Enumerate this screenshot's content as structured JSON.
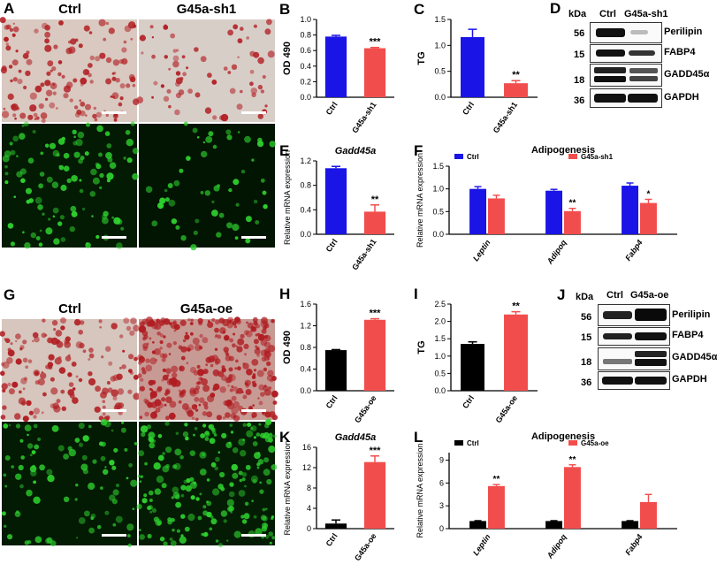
{
  "panels": {
    "A": {
      "label": "A",
      "titles": [
        "Ctrl",
        "G45a-sh1"
      ]
    },
    "G": {
      "label": "G",
      "titles": [
        "Ctrl",
        "G45a-oe"
      ]
    },
    "D": {
      "label": "D",
      "kda": "kDa",
      "lanes": [
        "Ctrl",
        "G45a-sh1"
      ],
      "markers": [
        "56",
        "15",
        "18",
        "36"
      ],
      "proteins": [
        "Perilipin",
        "FABP4",
        "GADD45α",
        "GAPDH"
      ]
    },
    "J": {
      "label": "J",
      "kda": "kDa",
      "lanes": [
        "Ctrl",
        "G45a-oe"
      ],
      "markers": [
        "56",
        "15",
        "18",
        "36"
      ],
      "proteins": [
        "Perilipin",
        "FABP4",
        "GADD45α",
        "GAPDH"
      ]
    }
  },
  "colors": {
    "ctrl_blue": "#1a14e6",
    "ctrl_black": "#000000",
    "treat_red": "#f24d4d",
    "oil_red": "#b22025",
    "gfp": "#2ed12e"
  },
  "chart_data": [
    {
      "id": "B",
      "label": "B",
      "type": "bar",
      "categories": [
        "Ctrl",
        "G45a-sh1"
      ],
      "values": [
        0.78,
        0.63
      ],
      "errors": [
        0.015,
        0.01
      ],
      "colors": [
        "#1a14e6",
        "#f24d4d"
      ],
      "ylabel": "OD 490",
      "ylim": [
        0,
        1.0
      ],
      "yticks": [
        "0.0",
        "0.2",
        "0.4",
        "0.6",
        "0.8",
        "1.0"
      ],
      "sig": [
        "",
        "***"
      ]
    },
    {
      "id": "C",
      "label": "C",
      "type": "bar",
      "categories": [
        "Ctrl",
        "G45a-sh1"
      ],
      "values": [
        1.16,
        0.27
      ],
      "errors": [
        0.15,
        0.05
      ],
      "colors": [
        "#1a14e6",
        "#f24d4d"
      ],
      "ylabel": "TG",
      "ylim": [
        0,
        1.5
      ],
      "yticks": [
        "0.0",
        "0.5",
        "1.0",
        "1.5"
      ],
      "sig": [
        "",
        "**"
      ]
    },
    {
      "id": "E",
      "label": "E",
      "type": "bar",
      "title": "Gadd45a",
      "categories": [
        "Ctrl",
        "G45a-sh1"
      ],
      "values": [
        1.08,
        0.37
      ],
      "errors": [
        0.03,
        0.11
      ],
      "colors": [
        "#1a14e6",
        "#f24d4d"
      ],
      "ylabel": "Relative mRNA expression",
      "ylim": [
        0,
        1.2
      ],
      "yticks": [
        "0.0",
        "0.4",
        "0.8",
        "1.2"
      ],
      "sig": [
        "",
        "**"
      ]
    },
    {
      "id": "F",
      "label": "F",
      "type": "bar",
      "title": "Adipogenesis",
      "categories": [
        "Leptin",
        "Adipoq",
        "Fabp4"
      ],
      "series": [
        {
          "name": "Ctrl",
          "values": [
            1.0,
            0.96,
            1.07
          ],
          "errors": [
            0.05,
            0.03,
            0.06
          ],
          "color": "#1a14e6"
        },
        {
          "name": "G45a-sh1",
          "values": [
            0.79,
            0.51,
            0.69
          ],
          "errors": [
            0.07,
            0.06,
            0.08
          ],
          "color": "#f24d4d"
        }
      ],
      "sig": [
        [
          "",
          ""
        ],
        [
          "",
          "**"
        ],
        [
          "",
          "*"
        ]
      ],
      "ylabel": "Relative mRNA expression",
      "ylim": [
        0,
        1.5
      ],
      "yticks": [
        "0.0",
        "0.5",
        "1.0",
        "1.5"
      ],
      "legend": "top"
    },
    {
      "id": "H",
      "label": "H",
      "type": "bar",
      "categories": [
        "Ctrl",
        "G45a-oe"
      ],
      "values": [
        0.75,
        1.31
      ],
      "errors": [
        0.01,
        0.02
      ],
      "colors": [
        "#000000",
        "#f24d4d"
      ],
      "ylabel": "OD 490",
      "ylim": [
        0,
        1.6
      ],
      "yticks": [
        "0.0",
        "0.4",
        "0.8",
        "1.2",
        "1.6"
      ],
      "sig": [
        "",
        "***"
      ]
    },
    {
      "id": "I",
      "label": "I",
      "type": "bar",
      "categories": [
        "Ctrl",
        "G45a-oe"
      ],
      "values": [
        1.35,
        2.2
      ],
      "errors": [
        0.06,
        0.08
      ],
      "colors": [
        "#000000",
        "#f24d4d"
      ],
      "ylabel": "TG",
      "ylim": [
        0,
        2.5
      ],
      "yticks": [
        "0.0",
        "0.5",
        "1.0",
        "1.5",
        "2.0",
        "2.5"
      ],
      "sig": [
        "",
        "**"
      ]
    },
    {
      "id": "K",
      "label": "K",
      "type": "bar",
      "title": "Gadd45a",
      "categories": [
        "Ctrl",
        "G45a-oe"
      ],
      "values": [
        1.0,
        13.1
      ],
      "errors": [
        0.7,
        1.2
      ],
      "colors": [
        "#000000",
        "#f24d4d"
      ],
      "ylabel": "Relative mRNA expression",
      "ylim": [
        0,
        16
      ],
      "yticks": [
        "0",
        "4",
        "8",
        "12",
        "16"
      ],
      "sig": [
        "",
        "***"
      ]
    },
    {
      "id": "L",
      "label": "L",
      "type": "bar",
      "title": "Adipogenesis",
      "categories": [
        "Leptin",
        "Adipoq",
        "Fabp4"
      ],
      "series": [
        {
          "name": "Ctrl",
          "values": [
            1.0,
            1.0,
            1.0
          ],
          "errors": [
            0.05,
            0.05,
            0.05
          ],
          "color": "#000000"
        },
        {
          "name": "G45a-oe",
          "values": [
            5.6,
            8.1,
            3.5
          ],
          "errors": [
            0.2,
            0.3,
            1.0
          ],
          "color": "#f24d4d"
        }
      ],
      "sig": [
        [
          "",
          "**"
        ],
        [
          "",
          "**"
        ],
        [
          "",
          ""
        ]
      ],
      "ylabel": "Relative mRNA expression",
      "ylim": [
        0,
        10
      ],
      "yticks": [
        "0",
        "3",
        "6",
        "9"
      ],
      "legend": "top"
    }
  ]
}
